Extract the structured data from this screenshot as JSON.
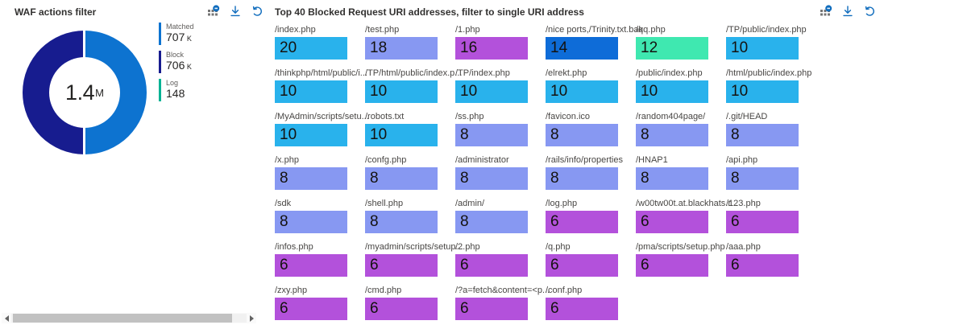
{
  "left_panel": {
    "title": "WAF actions filter",
    "donut": {
      "center_value": "1.4",
      "center_unit": "M",
      "colors": {
        "matched": "#0D73D0",
        "block": "#171C8F",
        "log": "#00B294"
      },
      "legend": [
        {
          "label": "Matched",
          "value": "707",
          "unit": "K",
          "color": "#0D73D0"
        },
        {
          "label": "Block",
          "value": "706",
          "unit": "K",
          "color": "#171C8F"
        },
        {
          "label": "Log",
          "value": "148",
          "unit": "",
          "color": "#00B294"
        }
      ]
    }
  },
  "right_panel": {
    "title": "Top 40 Blocked Request URI addresses, filter to single URI address",
    "tiles": [
      {
        "label": "/index.php",
        "value": "20",
        "color": "#29B2EC"
      },
      {
        "label": "/test.php",
        "value": "18",
        "color": "#8798F2"
      },
      {
        "label": "/1.php",
        "value": "16",
        "color": "#B351DB"
      },
      {
        "label": "/nice ports,/Trinity.txt.bak",
        "value": "14",
        "color": "#0E6CD8"
      },
      {
        "label": "/qq.php",
        "value": "12",
        "color": "#3FE8B0"
      },
      {
        "label": "/TP/public/index.php",
        "value": "10",
        "color": "#29B2EC"
      },
      {
        "label": "/thinkphp/html/public/i...",
        "value": "10",
        "color": "#29B2EC"
      },
      {
        "label": "/TP/html/public/index.p...",
        "value": "10",
        "color": "#29B2EC"
      },
      {
        "label": "/TP/index.php",
        "value": "10",
        "color": "#29B2EC"
      },
      {
        "label": "/elrekt.php",
        "value": "10",
        "color": "#29B2EC"
      },
      {
        "label": "/public/index.php",
        "value": "10",
        "color": "#29B2EC"
      },
      {
        "label": "/html/public/index.php",
        "value": "10",
        "color": "#29B2EC"
      },
      {
        "label": "/MyAdmin/scripts/setu...",
        "value": "10",
        "color": "#29B2EC"
      },
      {
        "label": "/robots.txt",
        "value": "10",
        "color": "#29B2EC"
      },
      {
        "label": "/ss.php",
        "value": "8",
        "color": "#8798F2"
      },
      {
        "label": "/favicon.ico",
        "value": "8",
        "color": "#8798F2"
      },
      {
        "label": "/random404page/",
        "value": "8",
        "color": "#8798F2"
      },
      {
        "label": "/.git/HEAD",
        "value": "8",
        "color": "#8798F2"
      },
      {
        "label": "/x.php",
        "value": "8",
        "color": "#8798F2"
      },
      {
        "label": "/confg.php",
        "value": "8",
        "color": "#8798F2"
      },
      {
        "label": "/administrator",
        "value": "8",
        "color": "#8798F2"
      },
      {
        "label": "/rails/info/properties",
        "value": "8",
        "color": "#8798F2"
      },
      {
        "label": "/HNAP1",
        "value": "8",
        "color": "#8798F2"
      },
      {
        "label": "/api.php",
        "value": "8",
        "color": "#8798F2"
      },
      {
        "label": "/sdk",
        "value": "8",
        "color": "#8798F2"
      },
      {
        "label": "/shell.php",
        "value": "8",
        "color": "#8798F2"
      },
      {
        "label": "/admin/",
        "value": "8",
        "color": "#8798F2"
      },
      {
        "label": "/log.php",
        "value": "6",
        "color": "#B351DB"
      },
      {
        "label": "/w00tw00t.at.blackhats.r...",
        "value": "6",
        "color": "#B351DB"
      },
      {
        "label": "/123.php",
        "value": "6",
        "color": "#B351DB"
      },
      {
        "label": "/infos.php",
        "value": "6",
        "color": "#B351DB"
      },
      {
        "label": "/myadmin/scripts/setup...",
        "value": "6",
        "color": "#B351DB"
      },
      {
        "label": "/2.php",
        "value": "6",
        "color": "#B351DB"
      },
      {
        "label": "/q.php",
        "value": "6",
        "color": "#B351DB"
      },
      {
        "label": "/pma/scripts/setup.php",
        "value": "6",
        "color": "#B351DB"
      },
      {
        "label": "/aaa.php",
        "value": "6",
        "color": "#B351DB"
      },
      {
        "label": "/zxy.php",
        "value": "6",
        "color": "#B351DB"
      },
      {
        "label": "/cmd.php",
        "value": "6",
        "color": "#B351DB"
      },
      {
        "label": "/?a=fetch&content=<p...",
        "value": "6",
        "color": "#B351DB"
      },
      {
        "label": "/conf.php",
        "value": "6",
        "color": "#B351DB"
      }
    ]
  },
  "chart_data": [
    {
      "type": "pie",
      "title": "WAF actions filter",
      "categories": [
        "Matched",
        "Block",
        "Log"
      ],
      "values": [
        707000,
        706000,
        148
      ],
      "center_label": "1.4M",
      "legend_position": "right",
      "colors": [
        "#0D73D0",
        "#171C8F",
        "#00B294"
      ]
    },
    {
      "type": "bar",
      "title": "Top 40 Blocked Request URI addresses, filter to single URI address",
      "categories": [
        "/index.php",
        "/test.php",
        "/1.php",
        "/nice ports,/Trinity.txt.bak",
        "/qq.php",
        "/TP/public/index.php",
        "/thinkphp/html/public/i...",
        "/TP/html/public/index.p...",
        "/TP/index.php",
        "/elrekt.php",
        "/public/index.php",
        "/html/public/index.php",
        "/MyAdmin/scripts/setu...",
        "/robots.txt",
        "/ss.php",
        "/favicon.ico",
        "/random404page/",
        "/.git/HEAD",
        "/x.php",
        "/confg.php",
        "/administrator",
        "/rails/info/properties",
        "/HNAP1",
        "/api.php",
        "/sdk",
        "/shell.php",
        "/admin/",
        "/log.php",
        "/w00tw00t.at.blackhats.r...",
        "/123.php",
        "/infos.php",
        "/myadmin/scripts/setup...",
        "/2.php",
        "/q.php",
        "/pma/scripts/setup.php",
        "/aaa.php",
        "/zxy.php",
        "/cmd.php",
        "/?a=fetch&content=<p...",
        "/conf.php"
      ],
      "values": [
        20,
        18,
        16,
        14,
        12,
        10,
        10,
        10,
        10,
        10,
        10,
        10,
        10,
        10,
        8,
        8,
        8,
        8,
        8,
        8,
        8,
        8,
        8,
        8,
        8,
        8,
        8,
        6,
        6,
        6,
        6,
        6,
        6,
        6,
        6,
        6,
        6,
        6,
        6,
        6
      ]
    }
  ]
}
